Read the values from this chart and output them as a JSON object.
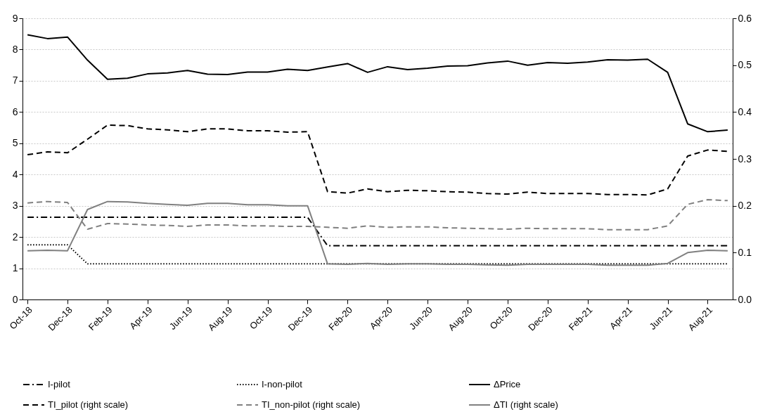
{
  "chart_data": {
    "type": "line",
    "categories": [
      "Oct-18",
      null,
      "Dec-18",
      null,
      "Feb-19",
      null,
      "Apr-19",
      null,
      "Jun-19",
      null,
      "Aug-19",
      null,
      "Oct-19",
      null,
      "Dec-19",
      null,
      "Feb-20",
      null,
      "Apr-20",
      null,
      "Jun-20",
      null,
      "Aug-20",
      null,
      "Oct-20",
      null,
      "Dec-20",
      null,
      "Feb-21",
      null,
      "Apr-21",
      null,
      "Jun-21",
      null,
      "Aug-21",
      null
    ],
    "series": [
      {
        "name": "I-pilot",
        "color": "#000000",
        "line_style": "dashdot",
        "values": [
          2.63,
          2.63,
          2.63,
          2.63,
          2.63,
          2.63,
          2.63,
          2.63,
          2.63,
          2.63,
          2.63,
          2.63,
          2.63,
          2.63,
          2.63,
          1.72,
          1.72,
          1.72,
          1.72,
          1.72,
          1.72,
          1.72,
          1.72,
          1.72,
          1.72,
          1.72,
          1.72,
          1.72,
          1.72,
          1.72,
          1.72,
          1.72,
          1.72,
          1.72,
          1.72,
          1.72
        ]
      },
      {
        "name": "I-non-pilot",
        "color": "#000000",
        "line_style": "dotted",
        "values": [
          1.75,
          1.75,
          1.75,
          1.14,
          1.14,
          1.14,
          1.14,
          1.14,
          1.14,
          1.14,
          1.14,
          1.14,
          1.14,
          1.14,
          1.14,
          1.14,
          1.14,
          1.14,
          1.14,
          1.14,
          1.14,
          1.14,
          1.14,
          1.14,
          1.14,
          1.14,
          1.14,
          1.14,
          1.14,
          1.14,
          1.14,
          1.14,
          1.14,
          1.14,
          1.14,
          1.14
        ]
      },
      {
        "name": "ΔPrice",
        "color": "#000000",
        "line_style": "solid",
        "values": [
          8.47,
          8.35,
          8.4,
          7.66,
          7.05,
          7.08,
          7.22,
          7.25,
          7.33,
          7.21,
          7.2,
          7.28,
          7.28,
          7.37,
          7.33,
          7.44,
          7.55,
          7.27,
          7.45,
          7.36,
          7.4,
          7.47,
          7.48,
          7.57,
          7.63,
          7.5,
          7.58,
          7.56,
          7.6,
          7.67,
          7.66,
          7.69,
          7.27,
          5.62,
          5.37,
          5.42
        ]
      },
      {
        "name": "TI_pilot (right scale)",
        "color": "#000000",
        "line_style": "dashed",
        "axis": "y2",
        "values": [
          0.309,
          0.315,
          0.313,
          0.342,
          0.372,
          0.371,
          0.364,
          0.362,
          0.358,
          0.364,
          0.364,
          0.36,
          0.36,
          0.357,
          0.358,
          0.23,
          0.227,
          0.236,
          0.23,
          0.233,
          0.232,
          0.23,
          0.229,
          0.226,
          0.225,
          0.229,
          0.226,
          0.226,
          0.226,
          0.224,
          0.224,
          0.223,
          0.236,
          0.306,
          0.319,
          0.316
        ]
      },
      {
        "name": "TI_non-pilot (right scale)",
        "color": "#808080",
        "line_style": "dashed",
        "axis": "y2",
        "values": [
          0.206,
          0.209,
          0.207,
          0.15,
          0.162,
          0.161,
          0.159,
          0.158,
          0.156,
          0.159,
          0.159,
          0.157,
          0.157,
          0.156,
          0.156,
          0.154,
          0.152,
          0.157,
          0.154,
          0.155,
          0.155,
          0.153,
          0.152,
          0.151,
          0.15,
          0.152,
          0.151,
          0.151,
          0.151,
          0.149,
          0.149,
          0.149,
          0.157,
          0.203,
          0.213,
          0.211
        ]
      },
      {
        "name": "ΔTI (right scale)",
        "color": "#808080",
        "line_style": "solid",
        "axis": "y2",
        "values": [
          0.104,
          0.105,
          0.104,
          0.192,
          0.209,
          0.208,
          0.205,
          0.203,
          0.201,
          0.205,
          0.205,
          0.202,
          0.202,
          0.2,
          0.2,
          0.076,
          0.075,
          0.077,
          0.075,
          0.076,
          0.076,
          0.075,
          0.075,
          0.074,
          0.073,
          0.075,
          0.075,
          0.075,
          0.075,
          0.073,
          0.073,
          0.073,
          0.077,
          0.1,
          0.105,
          0.104
        ]
      }
    ],
    "ylim": [
      0,
      9
    ],
    "yticks": [
      0,
      1,
      2,
      3,
      4,
      5,
      6,
      7,
      8,
      9
    ],
    "y2lim": [
      0,
      0.6
    ],
    "y2ticks": [
      {
        "value": 0,
        "label": "0.0"
      },
      0.1,
      0.2,
      0.3,
      0.4,
      0.5,
      0.6
    ],
    "grid": "y",
    "legend": "bottom"
  }
}
